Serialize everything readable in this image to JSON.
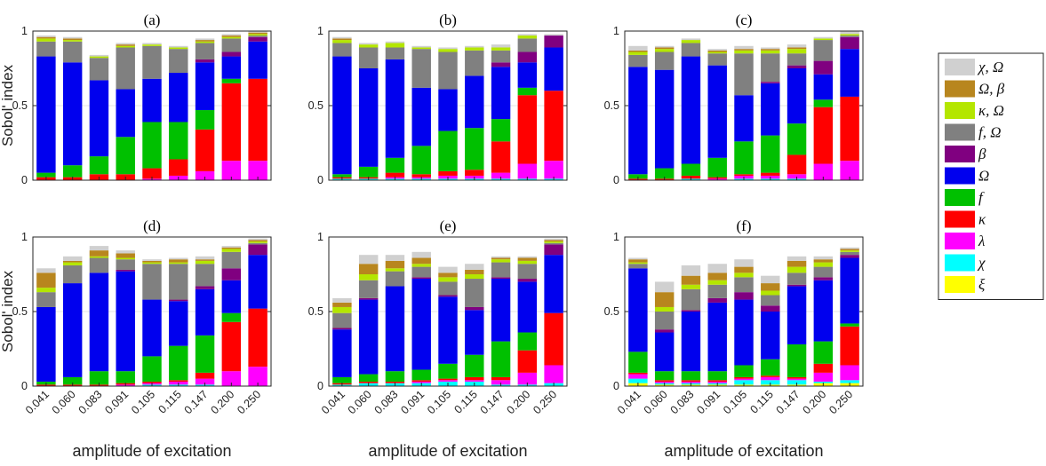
{
  "chart_data": {
    "type": "bar",
    "stacked": true,
    "categories": [
      "0.041",
      "0.060",
      "0.083",
      "0.091",
      "0.105",
      "0.115",
      "0.147",
      "0.200",
      "0.250"
    ],
    "ylabel": "Sobol' index",
    "xlabel": "amplitude of excitation",
    "ylim": [
      0,
      1
    ],
    "yticks": [
      "0",
      "0.5",
      "1"
    ],
    "grid": true,
    "legend_position": "right",
    "legend": [
      {
        "key": "chi_omega",
        "label": "χ, Ω",
        "color": "#d0d0d0"
      },
      {
        "key": "omega_beta",
        "label": "Ω, β",
        "color": "#b8861e"
      },
      {
        "key": "kappa_omega",
        "label": "κ, Ω",
        "color": "#b4e600"
      },
      {
        "key": "f_omega",
        "label": "f, Ω",
        "color": "#808080"
      },
      {
        "key": "beta",
        "label": "β",
        "color": "#800080"
      },
      {
        "key": "omega",
        "label": "Ω",
        "color": "#0000ee"
      },
      {
        "key": "f",
        "label": "f",
        "color": "#00c000"
      },
      {
        "key": "kappa",
        "label": "κ",
        "color": "#ff0000"
      },
      {
        "key": "lambda",
        "label": "λ",
        "color": "#ff00ff"
      },
      {
        "key": "chi",
        "label": "χ",
        "color": "#00ffff"
      },
      {
        "key": "xi",
        "label": "ξ",
        "color": "#ffff00"
      }
    ],
    "stack_order": [
      "xi",
      "chi",
      "lambda",
      "kappa",
      "f",
      "omega",
      "beta",
      "f_omega",
      "kappa_omega",
      "omega_beta",
      "chi_omega"
    ],
    "panels": [
      {
        "title": "(a)",
        "series": {
          "xi": [
            0,
            0,
            0,
            0,
            0,
            0,
            0,
            0,
            0
          ],
          "chi": [
            0,
            0,
            0,
            0,
            0,
            0,
            0,
            0,
            0
          ],
          "lambda": [
            0,
            0,
            0,
            0,
            0.01,
            0.03,
            0.06,
            0.13,
            0.13
          ],
          "kappa": [
            0.02,
            0.02,
            0.04,
            0.04,
            0.07,
            0.11,
            0.28,
            0.52,
            0.55
          ],
          "f": [
            0.03,
            0.08,
            0.12,
            0.25,
            0.31,
            0.25,
            0.13,
            0.03,
            0
          ],
          "omega": [
            0.78,
            0.69,
            0.51,
            0.32,
            0.29,
            0.33,
            0.32,
            0.15,
            0.25
          ],
          "beta": [
            0,
            0,
            0,
            0,
            0,
            0,
            0.02,
            0.03,
            0.03
          ],
          "f_omega": [
            0.1,
            0.14,
            0.15,
            0.28,
            0.22,
            0.16,
            0.11,
            0.09,
            0.01
          ],
          "kappa_omega": [
            0.02,
            0.01,
            0.01,
            0.01,
            0.01,
            0.01,
            0.01,
            0.01,
            0.01
          ],
          "omega_beta": [
            0.01,
            0.01,
            0,
            0.01,
            0,
            0,
            0.01,
            0.01,
            0.01
          ],
          "chi_omega": [
            0.01,
            0.01,
            0.01,
            0.01,
            0.01,
            0.01,
            0.01,
            0.01,
            0.01
          ]
        }
      },
      {
        "title": "(b)",
        "series": {
          "xi": [
            0,
            0,
            0,
            0,
            0,
            0,
            0,
            0,
            0
          ],
          "chi": [
            0.01,
            0.01,
            0.01,
            0.01,
            0.01,
            0.01,
            0.01,
            0.01,
            0.01
          ],
          "lambda": [
            0,
            0,
            0.01,
            0.01,
            0.02,
            0.02,
            0.04,
            0.1,
            0.12
          ],
          "kappa": [
            0.01,
            0.01,
            0.03,
            0.02,
            0.03,
            0.04,
            0.21,
            0.46,
            0.47
          ],
          "f": [
            0.02,
            0.07,
            0.1,
            0.19,
            0.27,
            0.28,
            0.15,
            0.05,
            0
          ],
          "omega": [
            0.79,
            0.66,
            0.66,
            0.39,
            0.28,
            0.35,
            0.35,
            0.17,
            0.29
          ],
          "beta": [
            0,
            0,
            0,
            0,
            0,
            0,
            0.03,
            0.07,
            0.08
          ],
          "f_omega": [
            0.09,
            0.14,
            0.08,
            0.26,
            0.25,
            0.17,
            0.08,
            0.09,
            0
          ],
          "kappa_omega": [
            0.02,
            0.02,
            0.03,
            0.01,
            0.02,
            0.02,
            0.02,
            0.02,
            0
          ],
          "omega_beta": [
            0.01,
            0,
            0,
            0,
            0,
            0,
            0,
            0,
            0
          ],
          "chi_omega": [
            0.01,
            0.01,
            0.01,
            0.01,
            0.01,
            0.01,
            0.02,
            0.01,
            0.01
          ]
        }
      },
      {
        "title": "(c)",
        "series": {
          "xi": [
            0,
            0,
            0,
            0,
            0,
            0,
            0,
            0,
            0
          ],
          "chi": [
            0,
            0,
            0.01,
            0,
            0.01,
            0.01,
            0.01,
            0,
            0
          ],
          "lambda": [
            0,
            0,
            0,
            0.01,
            0.02,
            0.02,
            0.03,
            0.11,
            0.13
          ],
          "kappa": [
            0.01,
            0.01,
            0.02,
            0.01,
            0.01,
            0.02,
            0.13,
            0.38,
            0.43
          ],
          "f": [
            0.03,
            0.07,
            0.08,
            0.13,
            0.22,
            0.25,
            0.21,
            0.05,
            0
          ],
          "omega": [
            0.72,
            0.66,
            0.72,
            0.62,
            0.31,
            0.35,
            0.37,
            0.17,
            0.32
          ],
          "beta": [
            0,
            0,
            0,
            0,
            0,
            0.01,
            0.02,
            0.09,
            0.08
          ],
          "f_omega": [
            0.08,
            0.12,
            0.09,
            0.08,
            0.28,
            0.19,
            0.08,
            0.14,
            0.01
          ],
          "kappa_omega": [
            0.02,
            0.02,
            0.02,
            0.01,
            0.02,
            0.02,
            0.03,
            0.01,
            0.01
          ],
          "omega_beta": [
            0.01,
            0.01,
            0,
            0.01,
            0.01,
            0.01,
            0.01,
            0,
            0
          ],
          "chi_omega": [
            0.03,
            0.01,
            0.01,
            0.01,
            0.02,
            0.01,
            0.02,
            0.01,
            0.02
          ]
        }
      },
      {
        "title": "(d)",
        "series": {
          "xi": [
            0,
            0,
            0,
            0,
            0,
            0,
            0,
            0,
            0
          ],
          "chi": [
            0,
            0,
            0,
            0,
            0.01,
            0.01,
            0.01,
            0,
            0
          ],
          "lambda": [
            0,
            0,
            0,
            0.01,
            0.01,
            0.02,
            0.04,
            0.1,
            0.13
          ],
          "kappa": [
            0.01,
            0.01,
            0.01,
            0.01,
            0.01,
            0.01,
            0.04,
            0.33,
            0.39
          ],
          "f": [
            0.02,
            0.05,
            0.09,
            0.08,
            0.17,
            0.23,
            0.25,
            0.06,
            0
          ],
          "omega": [
            0.5,
            0.63,
            0.66,
            0.67,
            0.38,
            0.3,
            0.31,
            0.22,
            0.36
          ],
          "beta": [
            0,
            0,
            0,
            0.01,
            0,
            0.01,
            0.02,
            0.08,
            0.07
          ],
          "f_omega": [
            0.1,
            0.12,
            0.1,
            0.07,
            0.24,
            0.24,
            0.15,
            0.11,
            0.01
          ],
          "kappa_omega": [
            0.03,
            0.02,
            0.01,
            0.01,
            0.01,
            0.01,
            0.02,
            0.02,
            0.01
          ],
          "omega_beta": [
            0.1,
            0.01,
            0.04,
            0.03,
            0.01,
            0.02,
            0.01,
            0.01,
            0.01
          ],
          "chi_omega": [
            0.03,
            0.03,
            0.03,
            0.02,
            0.01,
            0.01,
            0.02,
            0.01,
            0.01
          ]
        }
      },
      {
        "title": "(e)",
        "series": {
          "xi": [
            0,
            0,
            0,
            0,
            0,
            0,
            0,
            0,
            0
          ],
          "chi": [
            0.01,
            0.02,
            0.02,
            0.02,
            0.03,
            0.03,
            0.01,
            0.01,
            0.02
          ],
          "lambda": [
            0,
            0,
            0,
            0.01,
            0.01,
            0.01,
            0.03,
            0.08,
            0.12
          ],
          "kappa": [
            0.01,
            0.01,
            0.01,
            0.01,
            0.01,
            0.02,
            0.02,
            0.15,
            0.35
          ],
          "f": [
            0.04,
            0.05,
            0.07,
            0.07,
            0.1,
            0.15,
            0.24,
            0.12,
            0
          ],
          "omega": [
            0.32,
            0.5,
            0.57,
            0.61,
            0.45,
            0.3,
            0.42,
            0.34,
            0.39
          ],
          "beta": [
            0.01,
            0.01,
            0,
            0.01,
            0.01,
            0.02,
            0.01,
            0.02,
            0.07
          ],
          "f_omega": [
            0.1,
            0.12,
            0.1,
            0.07,
            0.09,
            0.19,
            0.1,
            0.1,
            0.01
          ],
          "kappa_omega": [
            0.04,
            0.04,
            0.02,
            0.02,
            0.03,
            0.03,
            0.02,
            0.02,
            0.01
          ],
          "omega_beta": [
            0.03,
            0.07,
            0.05,
            0.04,
            0.03,
            0.03,
            0.01,
            0.02,
            0.01
          ],
          "chi_omega": [
            0.03,
            0.06,
            0.04,
            0.04,
            0.04,
            0.04,
            0.01,
            0.01,
            0.01
          ]
        }
      },
      {
        "title": "(f)",
        "series": {
          "xi": [
            0.02,
            0.01,
            0.01,
            0.01,
            0.01,
            0.01,
            0.01,
            0.02,
            0.02
          ],
          "chi": [
            0.03,
            0.01,
            0.01,
            0.01,
            0.03,
            0.03,
            0.03,
            0.01,
            0.02
          ],
          "lambda": [
            0.03,
            0.01,
            0.01,
            0.01,
            0.01,
            0.02,
            0.01,
            0.06,
            0.1
          ],
          "kappa": [
            0.01,
            0.01,
            0.01,
            0.01,
            0.01,
            0.01,
            0.01,
            0.06,
            0.26
          ],
          "f": [
            0.14,
            0.06,
            0.06,
            0.06,
            0.08,
            0.11,
            0.22,
            0.15,
            0.02
          ],
          "omega": [
            0.56,
            0.26,
            0.4,
            0.46,
            0.44,
            0.32,
            0.39,
            0.41,
            0.44
          ],
          "beta": [
            0,
            0.02,
            0.01,
            0.03,
            0.05,
            0.04,
            0.01,
            0.02,
            0.02
          ],
          "f_omega": [
            0.03,
            0.12,
            0.14,
            0.09,
            0.1,
            0.07,
            0.08,
            0.07,
            0.02
          ],
          "kappa_omega": [
            0.01,
            0.03,
            0.03,
            0.03,
            0.03,
            0.03,
            0.04,
            0.03,
            0.01
          ],
          "omega_beta": [
            0.02,
            0.1,
            0.06,
            0.05,
            0.04,
            0.05,
            0.04,
            0.02,
            0.01
          ],
          "chi_omega": [
            0.01,
            0.07,
            0.07,
            0.06,
            0.05,
            0.05,
            0.03,
            0.02,
            0.01
          ]
        }
      }
    ]
  }
}
